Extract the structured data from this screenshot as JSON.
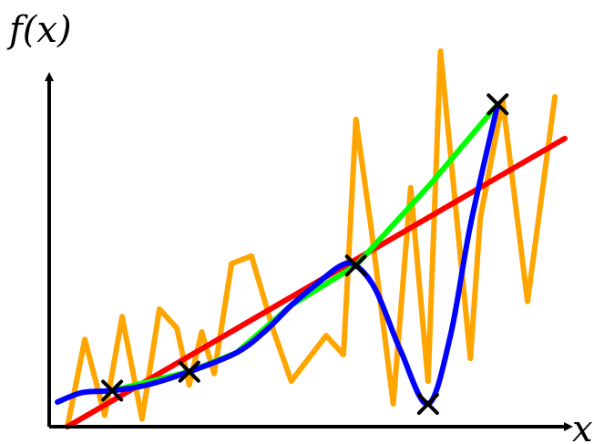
{
  "chart_data": {
    "type": "line",
    "xlabel": "x",
    "ylabel": "f(x)",
    "xlim": [
      0,
      10
    ],
    "ylim": [
      0,
      10
    ],
    "grid": false,
    "legend": "none",
    "markers": {
      "shape": "cross",
      "color": "#000000",
      "points": [
        [
          0.9,
          0.95
        ],
        [
          2.45,
          1.45
        ],
        [
          5.8,
          4.25
        ],
        [
          7.25,
          0.6
        ],
        [
          8.65,
          8.5
        ]
      ]
    },
    "series": [
      {
        "color": "#ffa500",
        "x": [
          0.0,
          0.35,
          0.75,
          1.1,
          1.5,
          1.85,
          2.2,
          2.45,
          2.7,
          2.95,
          3.3,
          3.7,
          4.15,
          4.5,
          5.2,
          5.55,
          5.8,
          6.1,
          6.55,
          6.9,
          7.25,
          7.5,
          8.1,
          8.3,
          8.75,
          9.25,
          9.8
        ],
        "y": [
          0.0,
          2.3,
          0.3,
          2.9,
          0.2,
          3.1,
          2.6,
          1.1,
          2.5,
          1.4,
          4.3,
          4.5,
          2.5,
          1.2,
          2.4,
          1.9,
          8.1,
          5.3,
          0.6,
          6.3,
          1.2,
          9.9,
          1.8,
          5.5,
          8.6,
          3.3,
          8.7
        ]
      },
      {
        "color": "#ff0000",
        "x": [
          0.0,
          10.0
        ],
        "y": [
          0.0,
          7.6
        ]
      },
      {
        "color": "#00ff00",
        "x": [
          0.9,
          2.45,
          3.4,
          4.5,
          5.8,
          7.3,
          8.65
        ],
        "y": [
          0.95,
          1.45,
          1.95,
          3.2,
          4.25,
          6.4,
          8.5
        ]
      },
      {
        "color": "#0000ff",
        "x": [
          -0.2,
          0.3,
          0.9,
          1.6,
          2.45,
          3.4,
          4.0,
          4.5,
          5.0,
          5.5,
          5.8,
          6.2,
          6.7,
          7.25,
          7.7,
          8.1,
          8.65
        ],
        "y": [
          0.65,
          0.9,
          0.95,
          1.1,
          1.45,
          1.95,
          2.55,
          3.2,
          3.75,
          4.25,
          4.25,
          3.6,
          2.0,
          0.6,
          2.4,
          5.3,
          8.5
        ]
      }
    ]
  }
}
